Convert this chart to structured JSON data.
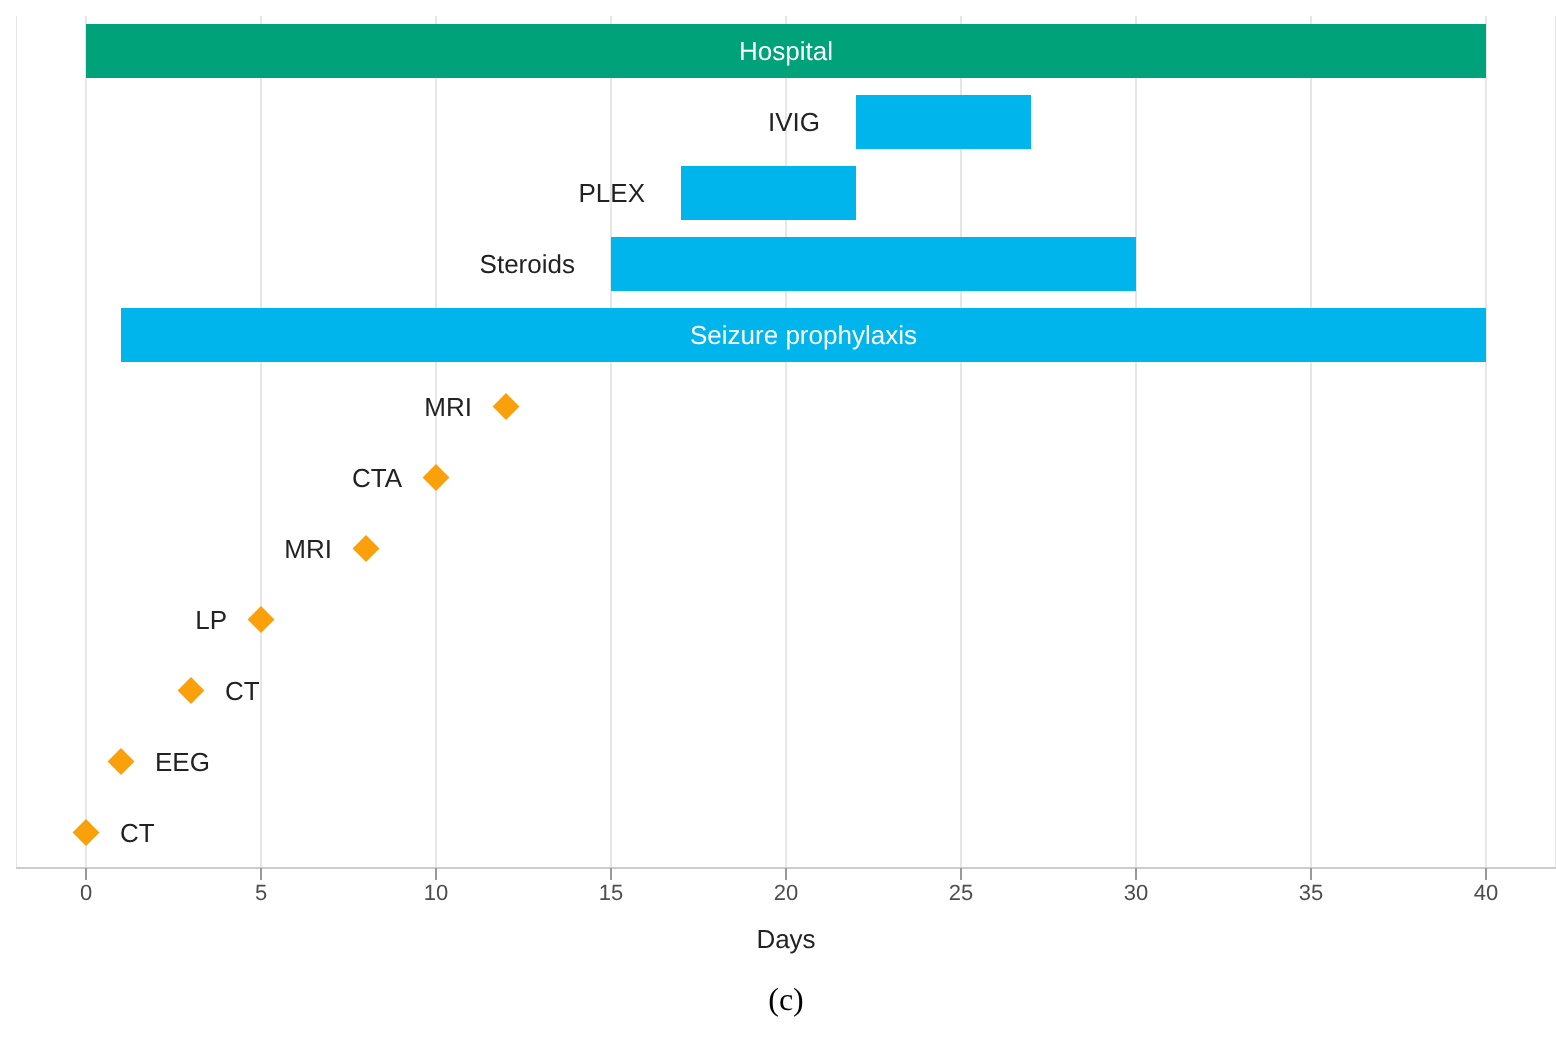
{
  "chart_data": {
    "type": "bar",
    "orientation": "horizontal",
    "xlabel": "Days",
    "annotations": [
      "(c)"
    ],
    "categories": [
      "Hospital",
      "IVIG",
      "PLEX",
      "Steroids",
      "Seizure prophylaxis",
      "MRI",
      "CTA",
      "MRI",
      "LP",
      "CT",
      "EEG",
      "CT"
    ],
    "series": [
      {
        "color": "#00a27a",
        "values": [
          40,
          null,
          null,
          null,
          null,
          null,
          null,
          null,
          null,
          null,
          null,
          null
        ],
        "base": [
          0,
          null,
          null,
          null,
          null,
          null,
          null,
          null,
          null,
          null,
          null,
          null
        ]
      },
      {
        "color": "#00b4ec",
        "values": [
          null,
          5,
          5,
          15,
          39,
          null,
          null,
          null,
          null,
          null,
          null,
          null
        ],
        "base": [
          null,
          22,
          17,
          15,
          1,
          null,
          null,
          null,
          null,
          null,
          null,
          null
        ]
      },
      {
        "type": "scatter",
        "color": "#f9a00a",
        "marker": "diamond",
        "values": [
          null,
          null,
          null,
          null,
          null,
          12,
          10,
          8,
          5,
          3,
          1,
          0
        ]
      }
    ],
    "xlim": [
      -2,
      42
    ],
    "xticks": [
      0,
      5,
      10,
      15,
      20,
      25,
      30,
      35,
      40
    ],
    "grid": "x",
    "tick_labels": "x",
    "legend": false
  }
}
